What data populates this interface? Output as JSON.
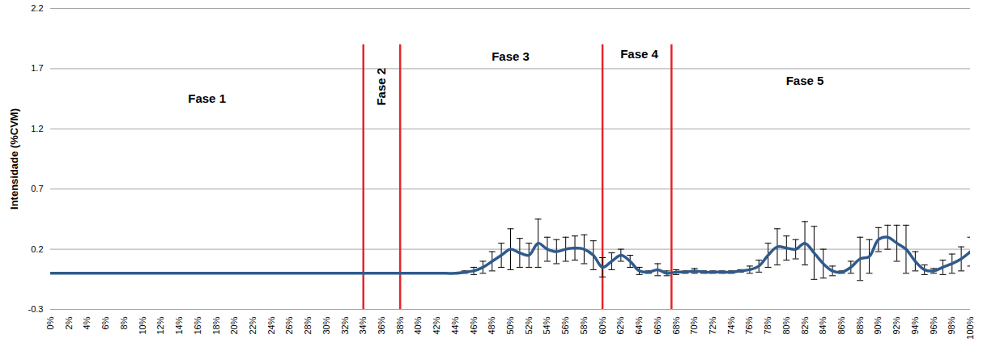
{
  "chart_data": {
    "type": "line",
    "y_label": "Intensidade (%CVM)",
    "x": [
      0,
      1,
      2,
      3,
      4,
      5,
      6,
      7,
      8,
      9,
      10,
      11,
      12,
      13,
      14,
      15,
      16,
      17,
      18,
      19,
      20,
      21,
      22,
      23,
      24,
      25,
      26,
      27,
      28,
      29,
      30,
      31,
      32,
      33,
      34,
      35,
      36,
      37,
      38,
      39,
      40,
      41,
      42,
      43,
      44,
      45,
      46,
      47,
      48,
      49,
      50,
      51,
      52,
      53,
      54,
      55,
      56,
      57,
      58,
      59,
      60,
      61,
      62,
      63,
      64,
      65,
      66,
      67,
      68,
      69,
      70,
      71,
      72,
      73,
      74,
      75,
      76,
      77,
      78,
      79,
      80,
      81,
      82,
      83,
      84,
      85,
      86,
      87,
      88,
      89,
      90,
      91,
      92,
      93,
      94,
      95,
      96,
      97,
      98,
      99,
      100
    ],
    "values": [
      0,
      0,
      0,
      0,
      0,
      0,
      0,
      0,
      0,
      0,
      0,
      0,
      0,
      0,
      0,
      0,
      0,
      0,
      0,
      0,
      0,
      0,
      0,
      0,
      0,
      0,
      0,
      0,
      0,
      0,
      0,
      0,
      0,
      0,
      0,
      0,
      0,
      0,
      0,
      0,
      0,
      0,
      0,
      0,
      0,
      0.01,
      0.02,
      0.05,
      0.1,
      0.15,
      0.2,
      0.17,
      0.15,
      0.25,
      0.2,
      0.18,
      0.2,
      0.21,
      0.2,
      0.15,
      0.05,
      0.1,
      0.15,
      0.1,
      0.02,
      0.01,
      0.03,
      0,
      0.01,
      0.01,
      0.02,
      0.01,
      0.01,
      0.01,
      0.01,
      0.02,
      0.03,
      0.06,
      0.15,
      0.22,
      0.21,
      0.2,
      0.25,
      0.17,
      0.08,
      0.02,
      0.01,
      0.05,
      0.12,
      0.14,
      0.28,
      0.3,
      0.25,
      0.2,
      0.1,
      0.03,
      0.02,
      0.05,
      0.08,
      0.12,
      0.18
    ],
    "errors": [
      0,
      0,
      0,
      0,
      0,
      0,
      0,
      0,
      0,
      0,
      0,
      0,
      0,
      0,
      0,
      0,
      0,
      0,
      0,
      0,
      0,
      0,
      0,
      0,
      0,
      0,
      0,
      0,
      0,
      0,
      0,
      0,
      0,
      0,
      0,
      0,
      0,
      0,
      0,
      0,
      0,
      0,
      0,
      0,
      0,
      0.01,
      0.03,
      0.05,
      0.08,
      0.1,
      0.17,
      0.12,
      0.1,
      0.2,
      0.1,
      0.1,
      0.1,
      0.1,
      0.12,
      0.12,
      0.08,
      0.07,
      0.05,
      0.05,
      0.03,
      0.01,
      0.05,
      0.02,
      0.02,
      0.01,
      0.02,
      0.01,
      0.01,
      0.01,
      0.01,
      0.01,
      0.03,
      0.05,
      0.1,
      0.15,
      0.1,
      0.08,
      0.18,
      0.22,
      0.12,
      0.04,
      0.01,
      0.05,
      0.18,
      0.14,
      0.1,
      0.1,
      0.15,
      0.2,
      0.08,
      0.04,
      0.02,
      0.06,
      0.08,
      0.1,
      0.12
    ],
    "color": "#2f5b8c",
    "xlim": [
      0,
      100
    ],
    "xticks": [
      {
        "value": 0,
        "label": "0%"
      },
      {
        "value": 2,
        "label": "2%"
      },
      {
        "value": 4,
        "label": "4%"
      },
      {
        "value": 6,
        "label": "6%"
      },
      {
        "value": 8,
        "label": "8%"
      },
      {
        "value": 10,
        "label": "10%"
      },
      {
        "value": 12,
        "label": "12%"
      },
      {
        "value": 14,
        "label": "14%"
      },
      {
        "value": 16,
        "label": "16%"
      },
      {
        "value": 18,
        "label": "18%"
      },
      {
        "value": 20,
        "label": "20%"
      },
      {
        "value": 22,
        "label": "22%"
      },
      {
        "value": 24,
        "label": "24%"
      },
      {
        "value": 26,
        "label": "26%"
      },
      {
        "value": 28,
        "label": "28%"
      },
      {
        "value": 30,
        "label": "30%"
      },
      {
        "value": 32,
        "label": "32%"
      },
      {
        "value": 34,
        "label": "34%"
      },
      {
        "value": 36,
        "label": "36%"
      },
      {
        "value": 38,
        "label": "38%"
      },
      {
        "value": 40,
        "label": "40%"
      },
      {
        "value": 42,
        "label": "42%"
      },
      {
        "value": 44,
        "label": "44%"
      },
      {
        "value": 46,
        "label": "46%"
      },
      {
        "value": 48,
        "label": "48%"
      },
      {
        "value": 50,
        "label": "50%"
      },
      {
        "value": 52,
        "label": "52%"
      },
      {
        "value": 54,
        "label": "54%"
      },
      {
        "value": 56,
        "label": "56%"
      },
      {
        "value": 58,
        "label": "58%"
      },
      {
        "value": 60,
        "label": "60%"
      },
      {
        "value": 62,
        "label": "62%"
      },
      {
        "value": 64,
        "label": "64%"
      },
      {
        "value": 66,
        "label": "66%"
      },
      {
        "value": 68,
        "label": "68%"
      },
      {
        "value": 70,
        "label": "70%"
      },
      {
        "value": 72,
        "label": "72%"
      },
      {
        "value": 74,
        "label": "74%"
      },
      {
        "value": 76,
        "label": "76%"
      },
      {
        "value": 78,
        "label": "78%"
      },
      {
        "value": 80,
        "label": "80%"
      },
      {
        "value": 82,
        "label": "82%"
      },
      {
        "value": 84,
        "label": "84%"
      },
      {
        "value": 86,
        "label": "86%"
      },
      {
        "value": 88,
        "label": "88%"
      },
      {
        "value": 90,
        "label": "90%"
      },
      {
        "value": 92,
        "label": "92%"
      },
      {
        "value": 94,
        "label": "94%"
      },
      {
        "value": 96,
        "label": "96%"
      },
      {
        "value": 98,
        "label": "98%"
      },
      {
        "value": 100,
        "label": "100%"
      }
    ],
    "ylim": [
      -0.3,
      2.2
    ],
    "yticks": [
      -0.3,
      0.2,
      0.7,
      1.2,
      1.7,
      2.2
    ],
    "grid": true,
    "phase_lines": {
      "x": [
        34,
        38,
        60,
        67.5
      ],
      "y1": -0.3,
      "y2": 1.9,
      "color": "#e8232a"
    },
    "annotations": [
      {
        "text": "Fase 1",
        "x": 17,
        "y": 1.45
      },
      {
        "text": "Fase 2",
        "x": 36,
        "y": 1.55
      },
      {
        "text": "Fase 3",
        "x": 50,
        "y": 1.8
      },
      {
        "text": "Fase 4",
        "x": 64,
        "y": 1.82
      },
      {
        "text": "Fase 5",
        "x": 82,
        "y": 1.6
      }
    ]
  }
}
